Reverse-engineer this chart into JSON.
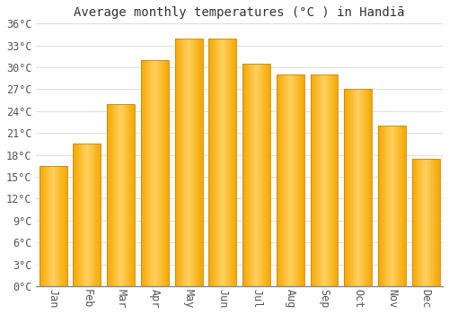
{
  "title": "Average monthly temperatures (°C ) in Handiā",
  "months": [
    "Jan",
    "Feb",
    "Mar",
    "Apr",
    "May",
    "Jun",
    "Jul",
    "Aug",
    "Sep",
    "Oct",
    "Nov",
    "Dec"
  ],
  "values": [
    16.5,
    19.5,
    25.0,
    31.0,
    34.0,
    34.0,
    30.5,
    29.0,
    29.0,
    27.0,
    22.0,
    17.5
  ],
  "bar_color_center": "#FFD060",
  "bar_color_edge": "#F5A800",
  "bar_outline_color": "#C8880A",
  "ylim": [
    0,
    36
  ],
  "ytick_step": 3,
  "background_color": "#FFFFFF",
  "plot_bg_color": "#FFFFFF",
  "grid_color": "#DDDDDD",
  "title_fontsize": 10,
  "tick_fontsize": 8.5,
  "font_family": "monospace"
}
